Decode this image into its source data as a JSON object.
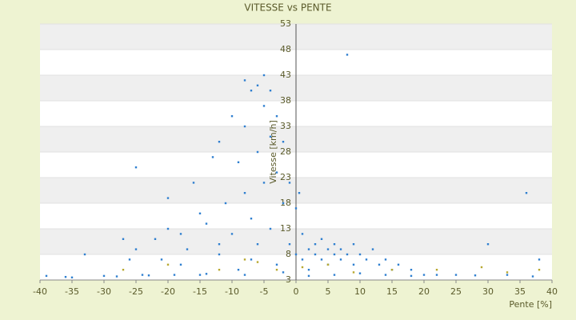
{
  "chart_data": {
    "type": "scatter",
    "title": "VITESSE vs PENTE",
    "xlabel": "Pente [%]",
    "ylabel": "Vitesse [km/h]",
    "xlim": [
      -40,
      40
    ],
    "xticks": [
      -40,
      -35,
      -30,
      -25,
      -20,
      -15,
      -10,
      -5,
      0,
      5,
      10,
      15,
      20,
      25,
      30,
      35,
      40
    ],
    "ylim": [
      3,
      53
    ],
    "yticks": [
      3,
      8,
      13,
      18,
      23,
      28,
      33,
      38,
      43,
      48,
      53
    ],
    "grid": true,
    "series": [
      {
        "color": "#2f7fd0",
        "x": [
          -39,
          -35,
          -33,
          -30,
          -27,
          -26,
          -25,
          -24,
          -22,
          -21,
          -20,
          -19,
          -18,
          -17,
          -16,
          -15,
          -14,
          -13,
          -12,
          -12,
          -11,
          -10,
          -10,
          -9,
          -9,
          -8,
          -8,
          -8,
          -7,
          -7,
          -7,
          -6,
          -6,
          -6,
          -5,
          -5,
          -5,
          -4,
          -4,
          -4,
          -3,
          -3,
          -3,
          -2,
          -2,
          -1,
          -1,
          0,
          0,
          0.5,
          1,
          1,
          2,
          2,
          3,
          3,
          4,
          4,
          5,
          5,
          6,
          6,
          7,
          7,
          8,
          8,
          9,
          9,
          10,
          11,
          12,
          13,
          14,
          15,
          16,
          18,
          20,
          22,
          25,
          30,
          33,
          36,
          38,
          -36,
          -28,
          -23,
          -14,
          -8,
          -2,
          2,
          6,
          10,
          14,
          18,
          28,
          37,
          -18,
          -12,
          -20,
          -15,
          -25
        ],
        "values": [
          3.8,
          3.5,
          8,
          3.8,
          11,
          7,
          25,
          4,
          11,
          7,
          19,
          4,
          12,
          9,
          22,
          4,
          14,
          27,
          30,
          8,
          18,
          35,
          12,
          26,
          5,
          42,
          33,
          20,
          40,
          15,
          7,
          41,
          28,
          10,
          43,
          37,
          22,
          40,
          31,
          13,
          35,
          24,
          6,
          30,
          18,
          22,
          10,
          17,
          8,
          20,
          12,
          7,
          9,
          5,
          10,
          8,
          11,
          7,
          9,
          6,
          10,
          8,
          9,
          7,
          47,
          8,
          10,
          6,
          8,
          7,
          9,
          6,
          7,
          5,
          6,
          5,
          4,
          4,
          4,
          10,
          4,
          20,
          7,
          3.6,
          3.7,
          3.9,
          4.2,
          4,
          4.5,
          3.8,
          4,
          4.3,
          4,
          3.8,
          3.9,
          3.7,
          6,
          10,
          13,
          16,
          9
        ]
      },
      {
        "color": "#b8a830",
        "x": [
          -27,
          -20,
          -12,
          -8,
          -6,
          -3,
          1,
          5,
          9,
          15,
          22,
          29,
          33,
          38
        ],
        "values": [
          5,
          6,
          5,
          7,
          6.5,
          5,
          5.5,
          6,
          4.5,
          5,
          5,
          5.5,
          4.5,
          5
        ]
      }
    ]
  }
}
